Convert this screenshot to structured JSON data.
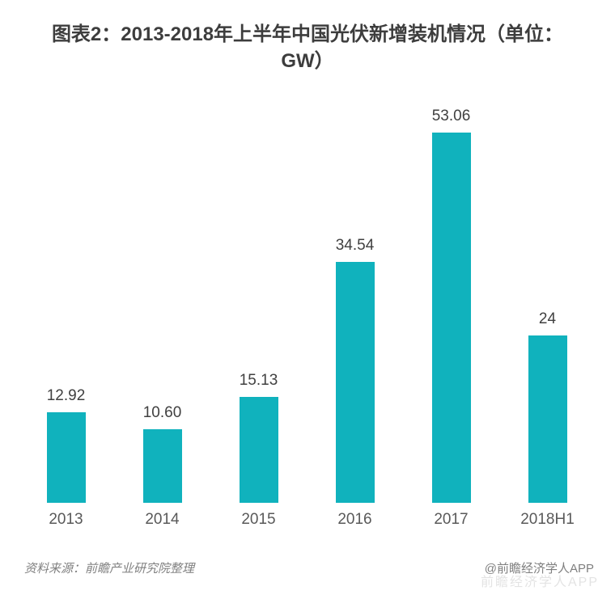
{
  "title": {
    "line1": "图表2：2013-2018年上半年中国光伏新增装机情况（单位：",
    "line2": "GW）"
  },
  "chart_data": {
    "type": "bar",
    "title": "图表2：2013-2018年上半年中国光伏新增装机情况（单位：GW）",
    "categories": [
      "2013",
      "2014",
      "2015",
      "2016",
      "2017",
      "2018H1"
    ],
    "values": [
      12.92,
      10.6,
      15.13,
      34.54,
      53.06,
      24
    ],
    "value_labels": [
      "12.92",
      "10.60",
      "15.13",
      "34.54",
      "53.06",
      "24"
    ],
    "xlabel": "",
    "ylabel": "",
    "unit": "GW",
    "ylim": [
      0,
      60
    ],
    "grid": false,
    "legend": false,
    "bar_color": "#10b2bd",
    "label_color": "#404040",
    "axis_label_color": "#595959"
  },
  "footer": {
    "source": "资料来源：前瞻产业研究院整理",
    "credit": "@前瞻经济学人APP",
    "watermark": "前瞻经济学人APP"
  }
}
